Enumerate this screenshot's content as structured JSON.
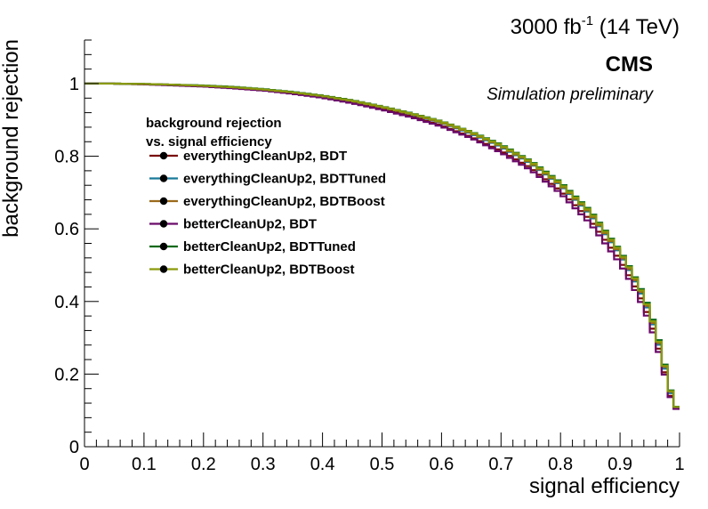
{
  "chart_data": {
    "type": "line",
    "title": "",
    "lumi_label": "3000 fb",
    "lumi_superscript": "-1",
    "lumi_suffix": " (14 TeV)",
    "experiment": "CMS",
    "subtitle": "Simulation preliminary",
    "xlabel": "signal efficiency",
    "ylabel": "background rejection",
    "xlim": [
      0,
      1
    ],
    "ylim": [
      0,
      1.12
    ],
    "x_ticks": [
      "0",
      "0.1",
      "0.2",
      "0.3",
      "0.4",
      "0.5",
      "0.6",
      "0.7",
      "0.8",
      "0.9",
      "1"
    ],
    "y_ticks": [
      "0",
      "0.2",
      "0.4",
      "0.6",
      "0.8",
      "1"
    ],
    "grid": false,
    "legend_position": "top-left",
    "legend_title_line1": "background rejection",
    "legend_title_line2": "vs. signal efficiency",
    "x": [
      0.0,
      0.05,
      0.1,
      0.15,
      0.2,
      0.25,
      0.3,
      0.35,
      0.4,
      0.45,
      0.5,
      0.55,
      0.6,
      0.65,
      0.7,
      0.75,
      0.8,
      0.85,
      0.9,
      0.92,
      0.94,
      0.95,
      0.96,
      0.97,
      0.98,
      0.99,
      1.0
    ],
    "series": [
      {
        "name": "everythingCleanUp2, BDT",
        "color": "#7a0a0a",
        "values": [
          1.0,
          1.0,
          0.998,
          0.996,
          0.993,
          0.988,
          0.982,
          0.974,
          0.963,
          0.948,
          0.93,
          0.91,
          0.885,
          0.853,
          0.815,
          0.768,
          0.705,
          0.625,
          0.515,
          0.458,
          0.392,
          0.35,
          0.3,
          0.24,
          0.17,
          0.11,
          0.1
        ]
      },
      {
        "name": "everythingCleanUp2, BDTTuned",
        "color": "#1a7a9a",
        "values": [
          1.0,
          1.0,
          0.999,
          0.997,
          0.994,
          0.99,
          0.984,
          0.976,
          0.966,
          0.952,
          0.935,
          0.915,
          0.892,
          0.862,
          0.826,
          0.78,
          0.72,
          0.64,
          0.53,
          0.472,
          0.405,
          0.362,
          0.312,
          0.25,
          0.18,
          0.115,
          0.1
        ]
      },
      {
        "name": "everythingCleanUp2, BDTBoost",
        "color": "#9a6a1a",
        "values": [
          1.0,
          1.0,
          0.999,
          0.997,
          0.994,
          0.99,
          0.984,
          0.976,
          0.966,
          0.952,
          0.935,
          0.916,
          0.893,
          0.864,
          0.828,
          0.782,
          0.722,
          0.643,
          0.533,
          0.475,
          0.41,
          0.366,
          0.316,
          0.255,
          0.185,
          0.118,
          0.1
        ]
      },
      {
        "name": "betterCleanUp2, BDT",
        "color": "#6a0a6a",
        "values": [
          1.0,
          1.0,
          0.998,
          0.995,
          0.992,
          0.987,
          0.981,
          0.972,
          0.961,
          0.946,
          0.928,
          0.907,
          0.882,
          0.85,
          0.81,
          0.762,
          0.698,
          0.615,
          0.505,
          0.448,
          0.382,
          0.34,
          0.29,
          0.232,
          0.165,
          0.108,
          0.1
        ]
      },
      {
        "name": "betterCleanUp2, BDTTuned",
        "color": "#0a6a1a",
        "values": [
          1.0,
          1.0,
          0.999,
          0.997,
          0.995,
          0.991,
          0.985,
          0.977,
          0.967,
          0.954,
          0.937,
          0.918,
          0.896,
          0.867,
          0.832,
          0.787,
          0.728,
          0.65,
          0.54,
          0.483,
          0.418,
          0.375,
          0.325,
          0.262,
          0.19,
          0.12,
          0.1
        ]
      },
      {
        "name": "betterCleanUp2, BDTBoost",
        "color": "#8a9a0a",
        "values": [
          1.0,
          1.0,
          0.999,
          0.997,
          0.994,
          0.99,
          0.984,
          0.976,
          0.966,
          0.953,
          0.936,
          0.917,
          0.895,
          0.866,
          0.83,
          0.785,
          0.725,
          0.647,
          0.537,
          0.48,
          0.414,
          0.37,
          0.32,
          0.258,
          0.187,
          0.119,
          0.1
        ]
      }
    ]
  }
}
